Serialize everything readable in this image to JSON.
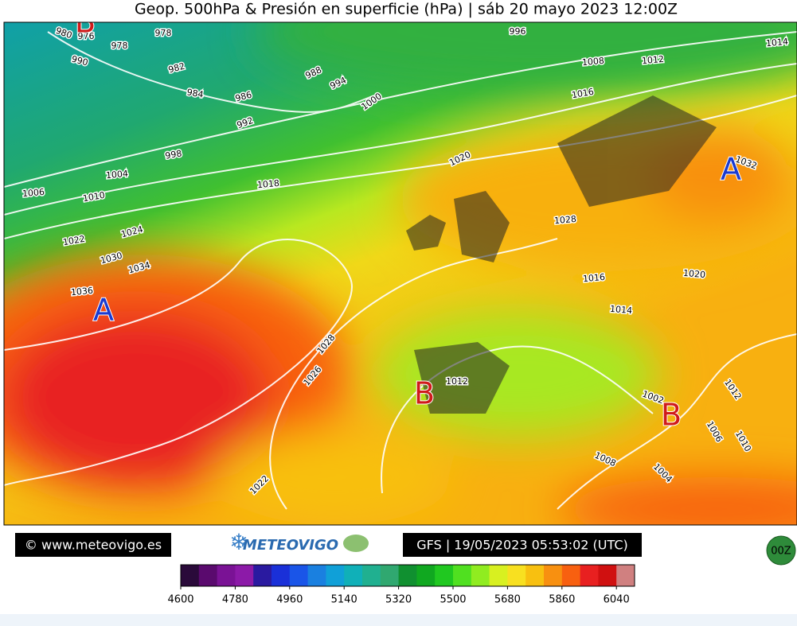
{
  "header": {
    "title": "Geop. 500hPa & Presión en superficie (hPa) | sáb 20 mayo 2023 12:00Z"
  },
  "map": {
    "isobar_labels": [
      "980",
      "976",
      "978",
      "978",
      "990",
      "982",
      "984",
      "986",
      "988",
      "994",
      "992",
      "1000",
      "996",
      "998",
      "1004",
      "1006",
      "1010",
      "1018",
      "1020",
      "1008",
      "1012",
      "1016",
      "1014",
      "1032",
      "1022",
      "1024",
      "1030",
      "1034",
      "1036",
      "1028",
      "1016",
      "1020",
      "1014",
      "1028",
      "1026",
      "1012",
      "1002",
      "1012",
      "1006",
      "1010",
      "1008",
      "1004",
      "1022"
    ],
    "pressure_centers": [
      {
        "label": "A",
        "color": "#1a3ad0"
      },
      {
        "label": "A",
        "color": "#1a3ad0"
      },
      {
        "label": "B",
        "color": "#d01a1a"
      },
      {
        "label": "B",
        "color": "#d01a1a"
      },
      {
        "label": "B",
        "color": "#d01a1a"
      }
    ]
  },
  "footer": {
    "copyright": "© www.meteovigo.es",
    "logo": "METEOVIGO",
    "run_info": "GFS | 19/05/2023 05:53:02 (UTC)",
    "run_button": "00Z"
  },
  "colorbar": {
    "range": [
      4600,
      6100
    ],
    "step": 60,
    "colors": [
      "#2a0a3a",
      "#5a0a6e",
      "#7a1295",
      "#8c1aa8",
      "#2a1aa0",
      "#1a30d8",
      "#1a55e8",
      "#1a80e0",
      "#10a0d8",
      "#10b0b8",
      "#20b090",
      "#30a870",
      "#109030",
      "#10a820",
      "#20c820",
      "#50e020",
      "#90ec20",
      "#d8f020",
      "#f8e020",
      "#f8c010",
      "#f89010",
      "#f86010",
      "#e82020",
      "#d01010",
      "#d08080"
    ],
    "ticks": [
      4600,
      4780,
      4960,
      5140,
      5320,
      5500,
      5680,
      5860,
      6040
    ]
  }
}
